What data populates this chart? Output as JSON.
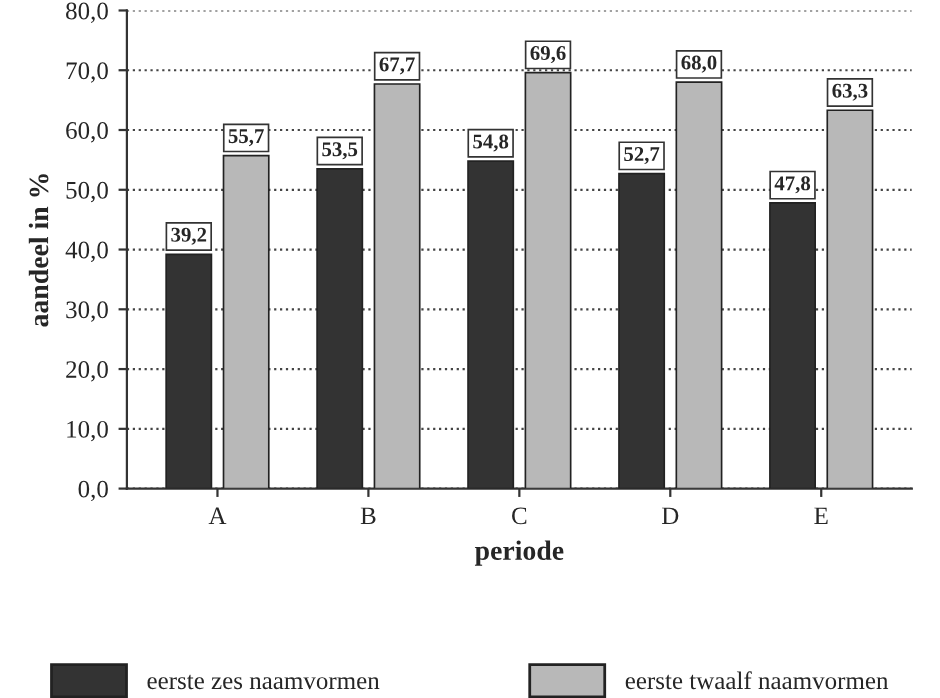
{
  "chart_data": {
    "type": "bar",
    "xlabel": "periode",
    "ylabel": "aandeel in %",
    "categories": [
      "A",
      "B",
      "C",
      "D",
      "E"
    ],
    "series": [
      {
        "name": "eerste zes naamvormen",
        "color": "#333333",
        "values": [
          39.2,
          53.5,
          54.8,
          52.7,
          47.8
        ],
        "value_labels": [
          "39,2",
          "53,5",
          "54,8",
          "52,7",
          "47,8"
        ]
      },
      {
        "name": "eerste twaalf naamvormen",
        "color": "#b8b8b8",
        "values": [
          55.7,
          67.7,
          69.6,
          68.0,
          63.3
        ],
        "value_labels": [
          "55,7",
          "67,7",
          "69,6",
          "68,0",
          "63,3"
        ]
      }
    ],
    "ylim": [
      0,
      80
    ],
    "yticks": [
      {
        "value": 0,
        "label": "0,0"
      },
      {
        "value": 10,
        "label": "10,0"
      },
      {
        "value": 20,
        "label": "20,0"
      },
      {
        "value": 30,
        "label": "30,0"
      },
      {
        "value": 40,
        "label": "40,0"
      },
      {
        "value": 50,
        "label": "50,0"
      },
      {
        "value": 60,
        "label": "60,0"
      },
      {
        "value": 70,
        "label": "70,0"
      },
      {
        "value": 80,
        "label": "80,0"
      }
    ],
    "grid": "y",
    "line_style": "dotted",
    "legend": "bottom"
  }
}
